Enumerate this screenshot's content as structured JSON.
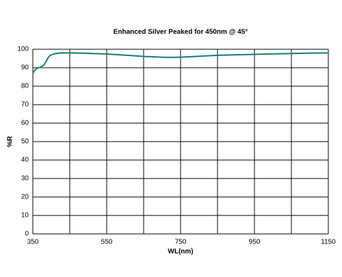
{
  "chart_data": {
    "type": "line",
    "title": "Enhanced Silver Peaked for 450nm @ 45°",
    "x_label": "WL(nm)",
    "y_label": "%R",
    "series": [
      {
        "name": "%R",
        "color": "#137a78",
        "x": [
          350,
          355,
          360,
          365,
          370,
          375,
          380,
          385,
          390,
          395,
          400,
          410,
          420,
          440,
          460,
          500,
          550,
          600,
          650,
          700,
          730,
          760,
          800,
          850,
          900,
          950,
          1000,
          1050,
          1100,
          1150
        ],
        "values": [
          87,
          88.5,
          89.5,
          90,
          90.2,
          90.8,
          91.5,
          93,
          95,
          96.3,
          97,
          97.6,
          97.9,
          98,
          98,
          97.8,
          97.4,
          96.8,
          96.1,
          95.7,
          95.6,
          95.8,
          96.2,
          96.7,
          97,
          97.2,
          97.5,
          97.7,
          97.9,
          98
        ]
      }
    ],
    "xlim": [
      350,
      1150
    ],
    "xticks": [
      350,
      550,
      750,
      950,
      1150
    ],
    "xminorticks": [
      450,
      650,
      850,
      1050
    ],
    "ylim": [
      0,
      100
    ],
    "yticks": [
      0,
      10,
      20,
      30,
      40,
      50,
      60,
      70,
      80,
      90,
      100
    ],
    "grid": true
  }
}
